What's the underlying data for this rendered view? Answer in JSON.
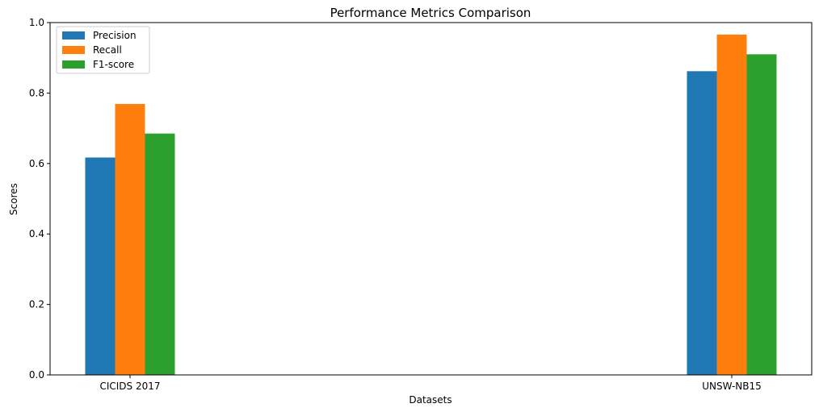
{
  "chart_data": {
    "type": "bar",
    "title": "Performance Metrics Comparison",
    "xlabel": "Datasets",
    "ylabel": "Scores",
    "categories": [
      "CICIDS 2017",
      "UNSW-NB15"
    ],
    "series": [
      {
        "name": "Precision",
        "color": "#1f77b4",
        "values": [
          0.617,
          0.862
        ]
      },
      {
        "name": "Recall",
        "color": "#ff7f0e",
        "values": [
          0.769,
          0.966
        ]
      },
      {
        "name": "F1-score",
        "color": "#2ca02c",
        "values": [
          0.685,
          0.91
        ]
      }
    ],
    "ylim": [
      0.0,
      1.0
    ],
    "yticks": [
      "0.0",
      "0.2",
      "0.4",
      "0.6",
      "0.8",
      "1.0"
    ],
    "grid": false,
    "legend": "top-left"
  }
}
